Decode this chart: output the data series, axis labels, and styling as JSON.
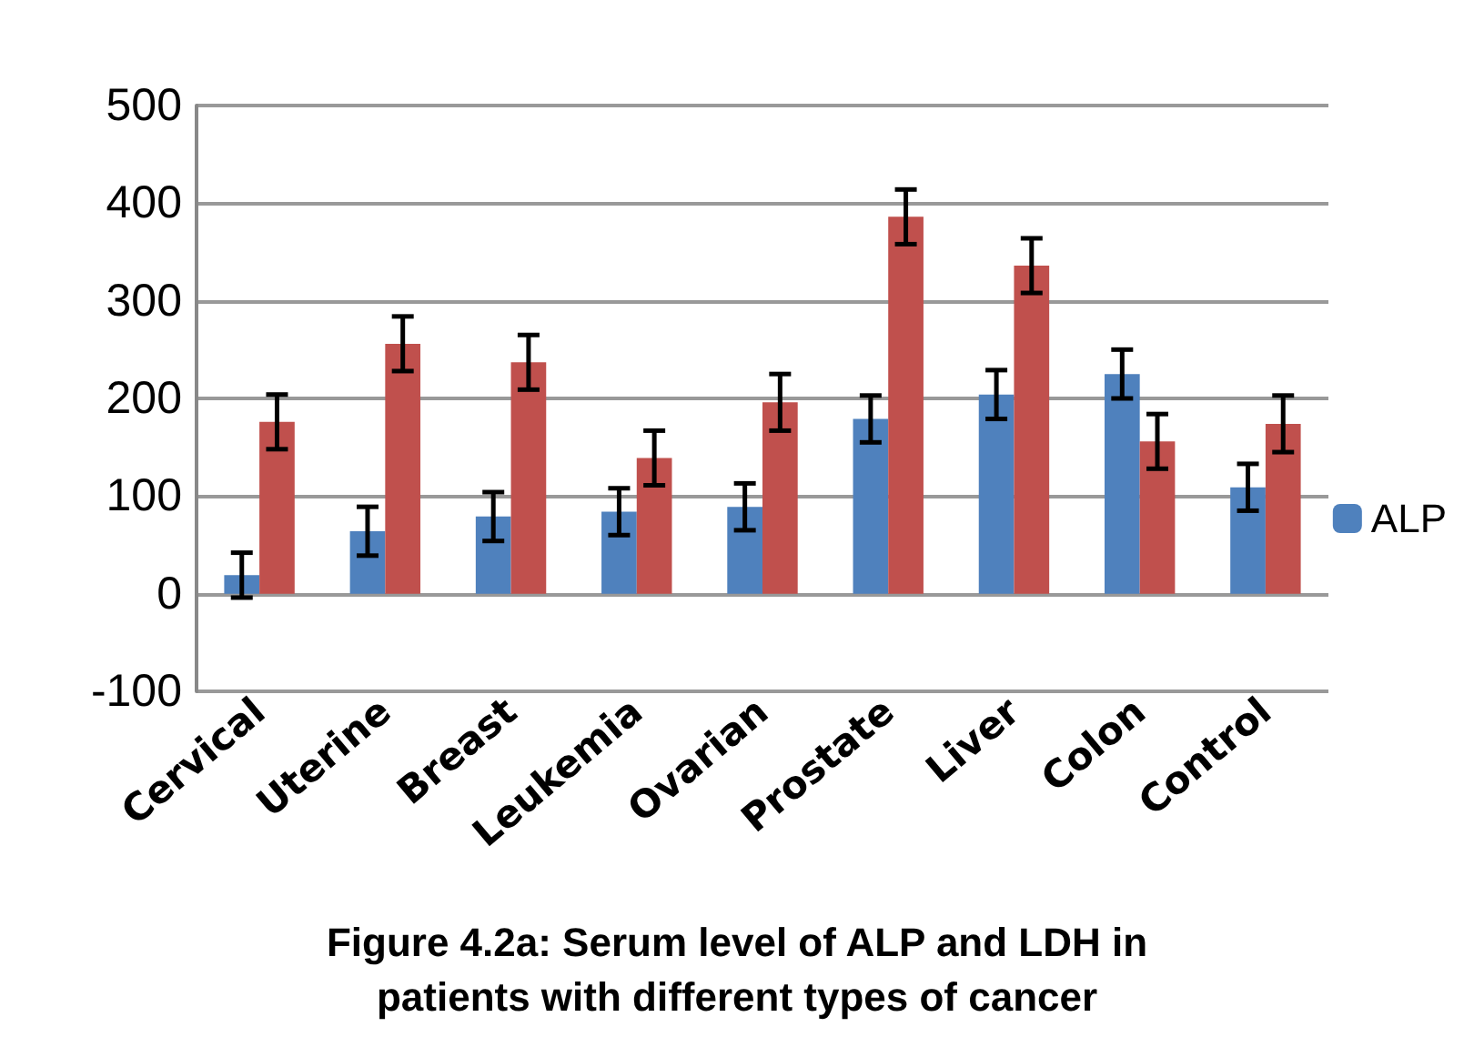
{
  "chart_data": {
    "type": "bar",
    "title": "Figure 4.2a: Serum level of ALP and LDH in\npatients with different types of cancer",
    "categories": [
      "Cervical",
      "Uterine",
      "Breast",
      "Leukemia",
      "Ovarian",
      "Prostate",
      "Liver",
      "Colon",
      "Control"
    ],
    "series": [
      {
        "name": "ALP",
        "color": "#4f81bd",
        "values": [
          19,
          64,
          79,
          84,
          89,
          179,
          204,
          225,
          109
        ],
        "errors": [
          23,
          25,
          25,
          24,
          24,
          24,
          25,
          25,
          24
        ]
      },
      {
        "color": "#c0504d",
        "values": [
          176,
          256,
          237,
          139,
          196,
          386,
          336,
          156,
          174
        ],
        "errors": [
          28,
          28,
          28,
          28,
          29,
          28,
          28,
          28,
          29
        ]
      }
    ],
    "ylim": [
      -100,
      500
    ],
    "yticks": [
      -100,
      0,
      100,
      200,
      300,
      400,
      500
    ],
    "grid": "y",
    "legend": "right"
  }
}
